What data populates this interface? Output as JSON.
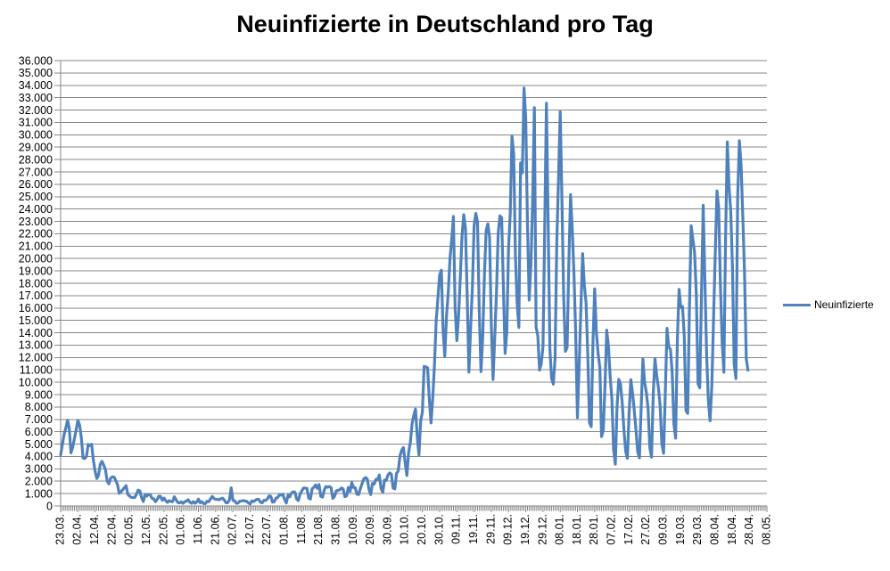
{
  "colors": {
    "line": "#4F81BD",
    "grid": "#878787",
    "axis": "#878787",
    "text": "#000000",
    "background": "#FFFFFF"
  },
  "chart_data": {
    "type": "line",
    "title": "Neuinfizierte in Deutschland pro Tag",
    "series_name": "Neuinfizierte",
    "legend_position": "right",
    "grid": true,
    "x_unit": "day",
    "x_start_date": "23.03.2020",
    "data_end_date": "27.04.2021",
    "axis_end_date": "08.05.2021",
    "x_note": "category axis of daily values; one day skipped between 21.06. and 02.07.; trailing categories after 27.04. have no data",
    "axis_categories": 411,
    "tick_every": 10,
    "x_tick_labels": [
      "23.03.",
      "02.04.",
      "12.04.",
      "22.04.",
      "02.05.",
      "12.05.",
      "22.05.",
      "01.06.",
      "11.06.",
      "21.06.",
      "02.07.",
      "12.07.",
      "22.07.",
      "01.08.",
      "11.08.",
      "21.08.",
      "31.08.",
      "10.09.",
      "20.09.",
      "30.09.",
      "10.10.",
      "20.10.",
      "30.10.",
      "09.11.",
      "19.11.",
      "29.11.",
      "09.12.",
      "19.12.",
      "29.12.",
      "08.01.",
      "18.01.",
      "28.01.",
      "07.02.",
      "17.02.",
      "27.02.",
      "09.03.",
      "19.03.",
      "29.03.",
      "08.04.",
      "18.04.",
      "28.04.",
      "08.05."
    ],
    "ylim": [
      0,
      36000
    ],
    "y_step": 1000,
    "y_tick_labels": [
      "0",
      "1.000",
      "2.000",
      "3.000",
      "4.000",
      "5.000",
      "6.000",
      "7.000",
      "8.000",
      "9.000",
      "10.000",
      "11.000",
      "12.000",
      "13.000",
      "14.000",
      "15.000",
      "16.000",
      "17.000",
      "18.000",
      "19.000",
      "20.000",
      "21.000",
      "22.000",
      "23.000",
      "24.000",
      "25.000",
      "26.000",
      "27.000",
      "28.000",
      "29.000",
      "30.000",
      "31.000",
      "32.000",
      "33.000",
      "34.000",
      "35.000",
      "36.000"
    ],
    "values": [
      4134,
      4954,
      5780,
      6294,
      6933,
      6293,
      4289,
      4751,
      5453,
      6156,
      6922,
      6549,
      5534,
      3884,
      3834,
      4003,
      4974,
      4885,
      4990,
      3699,
      2821,
      2218,
      2486,
      3380,
      3609,
      3301,
      2945,
      2018,
      1785,
      2237,
      2352,
      2337,
      2055,
      1737,
      1018,
      1144,
      1304,
      1478,
      1639,
      945,
      793,
      697,
      679,
      685,
      947,
      1284,
      1209,
      667,
      357,
      933,
      798,
      933,
      913,
      620,
      583,
      342,
      513,
      797,
      777,
      460,
      638,
      431,
      289,
      432,
      362,
      353,
      741,
      507,
      286,
      247,
      333,
      213,
      342,
      394,
      507,
      301,
      214,
      350,
      214,
      318,
      555,
      258,
      348,
      192,
      186,
      378,
      345,
      580,
      770,
      601,
      537,
      538,
      503,
      587,
      630,
      477,
      256,
      262,
      498,
      1466,
      446,
      422,
      219,
      239,
      390,
      397,
      442,
      395,
      378,
      248,
      159,
      412,
      351,
      456,
      534,
      529,
      305,
      249,
      454,
      445,
      569,
      815,
      781,
      305,
      340,
      633,
      684,
      902,
      870,
      955,
      509,
      240,
      879,
      741,
      1045,
      1147,
      1122,
      555,
      436,
      966,
      1226,
      1449,
      1445,
      1415,
      625,
      561,
      1390,
      1510,
      1707,
      1427,
      1737,
      782,
      711,
      1278,
      1576,
      1507,
      1571,
      1479,
      610,
      785,
      1218,
      1256,
      1311,
      1453,
      1378,
      754,
      814,
      1499,
      1176,
      1892,
      1484,
      1480,
      948,
      920,
      1407,
      1821,
      2194,
      2297,
      2179,
      1345,
      922,
      1821,
      1769,
      2143,
      2153,
      2507,
      1411,
      1111,
      2089,
      2069,
      2503,
      2673,
      2563,
      1449,
      1382,
      2639,
      2828,
      4058,
      4516,
      4721,
      3483,
      2467,
      4325,
      5132,
      6638,
      7334,
      7830,
      5587,
      4122,
      6868,
      7595,
      11287,
      11242,
      11176,
      8685,
      6714,
      8685,
      11409,
      14964,
      16774,
      18681,
      19059,
      14177,
      12097,
      15352,
      17214,
      19990,
      21506,
      23399,
      16017,
      13363,
      15332,
      18487,
      21866,
      23542,
      22461,
      16947,
      10824,
      14419,
      17561,
      22609,
      23648,
      22964,
      15741,
      10864,
      13554,
      18633,
      22268,
      22806,
      21695,
      14611,
      10223,
      13604,
      17270,
      22046,
      23449,
      23318,
      17767,
      12332,
      14054,
      20815,
      23679,
      29875,
      28438,
      20200,
      16362,
      14432,
      27728,
      26923,
      33777,
      31300,
      22771,
      16643,
      19528,
      24740,
      32195,
      14455,
      13755,
      10976,
      11487,
      12892,
      22459,
      32552,
      22924,
      12690,
      10315,
      9847,
      11897,
      21237,
      26391,
      31849,
      24694,
      16946,
      12497,
      12802,
      19600,
      25164,
      22368,
      18678,
      13882,
      7141,
      11369,
      15974,
      20398,
      17862,
      16417,
      12257,
      6729,
      6412,
      13202,
      17553,
      14022,
      12321,
      11192,
      5608,
      6114,
      9705,
      14211,
      12908,
      10485,
      8616,
      4535,
      3379,
      8072,
      10237,
      9860,
      8354,
      6114,
      4426,
      3856,
      7556,
      10207,
      9113,
      7676,
      6114,
      4369,
      3883,
      8007,
      11869,
      9997,
      9164,
      7890,
      4732,
      3943,
      9019,
      11912,
      10580,
      9557,
      8103,
      5011,
      4252,
      9146,
      14356,
      12834,
      12674,
      10790,
      6604,
      5480,
      13435,
      17504,
      16033,
      16119,
      13733,
      7709,
      7485,
      15813,
      22657,
      21573,
      20472,
      17176,
      9872,
      9549,
      17051,
      24300,
      18129,
      12196,
      8497,
      6885,
      9677,
      15100,
      20407,
      25464,
      24097,
      17855,
      13245,
      10810,
      21693,
      29426,
      25831,
      23804,
      19185,
      11437,
      10293,
      24884,
      29518,
      27543,
      23392,
      18773,
      11907,
      10976
    ]
  }
}
